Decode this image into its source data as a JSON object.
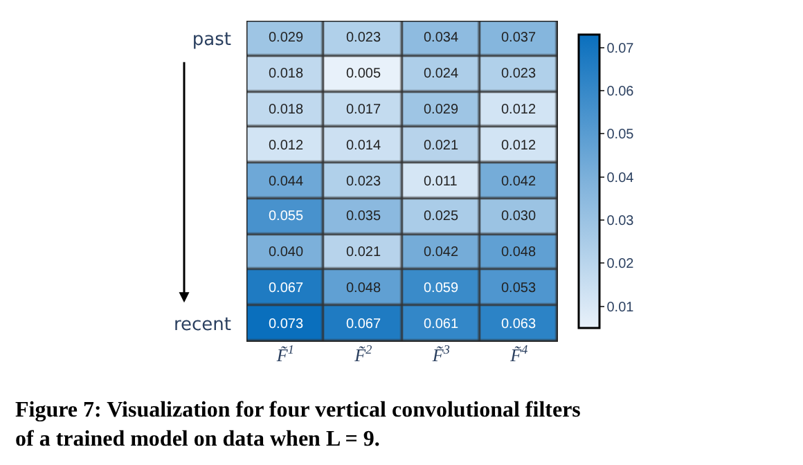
{
  "chart_data": {
    "type": "heatmap",
    "categories": [
      "F̃$^{1}$",
      "F̃$^{2}$",
      "F̃$^{3}$",
      "F̃$^{4}$"
    ],
    "y_categories": [
      "past",
      null,
      null,
      null,
      null,
      null,
      null,
      null,
      "recent"
    ],
    "cells": [
      [
        0.029,
        0.023,
        0.034,
        0.037
      ],
      [
        0.018,
        0.005,
        0.024,
        0.023
      ],
      [
        0.018,
        0.017,
        0.029,
        0.012
      ],
      [
        0.012,
        0.014,
        0.021,
        0.012
      ],
      [
        0.044,
        0.023,
        0.011,
        0.042
      ],
      [
        0.055,
        0.035,
        0.025,
        0.03
      ],
      [
        0.04,
        0.021,
        0.042,
        0.048
      ],
      [
        0.067,
        0.048,
        0.059,
        0.053
      ],
      [
        0.073,
        0.067,
        0.061,
        0.063
      ]
    ],
    "cell_labels": [
      [
        "0.029",
        "0.023",
        "0.034",
        "0.037"
      ],
      [
        "0.018",
        "0.005",
        "0.024",
        "0.023"
      ],
      [
        "0.018",
        "0.017",
        "0.029",
        "0.012"
      ],
      [
        "0.012",
        "0.014",
        "0.021",
        "0.012"
      ],
      [
        "0.044",
        "0.023",
        "0.011",
        "0.042"
      ],
      [
        "0.055",
        "0.035",
        "0.025",
        "0.030"
      ],
      [
        "0.040",
        "0.021",
        "0.042",
        "0.048"
      ],
      [
        "0.067",
        "0.048",
        "0.059",
        "0.053"
      ],
      [
        "0.073",
        "0.067",
        "0.061",
        "0.063"
      ]
    ],
    "clim": [
      0.005,
      0.073
    ],
    "cticks": [
      0.01,
      0.02,
      0.03,
      0.04,
      0.05,
      0.06,
      0.07
    ],
    "annotations": [
      "Figure 7: Visualization for four vertical convolutional filters\nof a trained model on data when L = 9."
    ]
  }
}
